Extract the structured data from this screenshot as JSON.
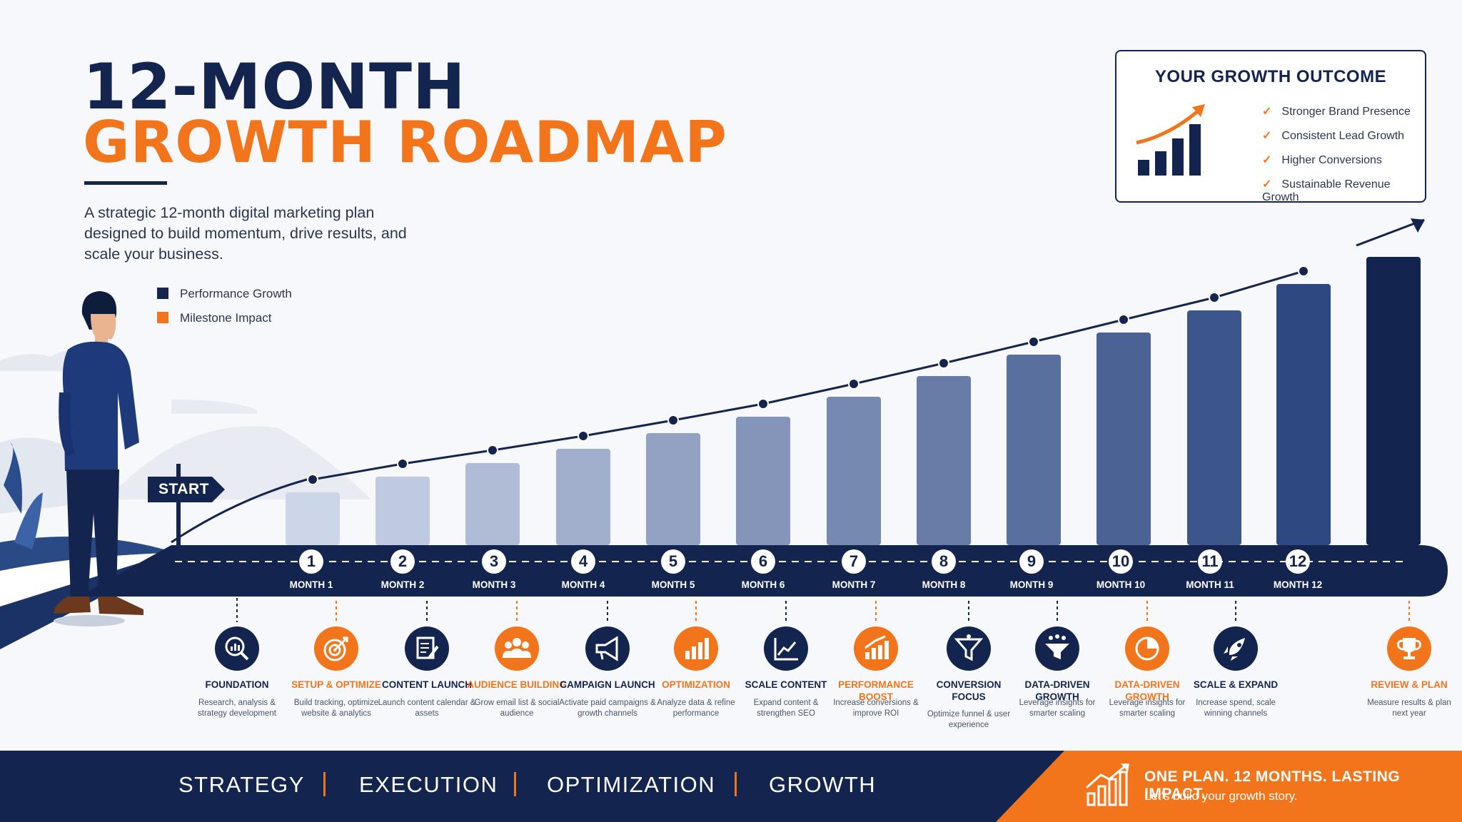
{
  "header": {
    "title_line1": "12-MONTH",
    "title_line2": "GROWTH ROADMAP",
    "subtitle": "A strategic 12-month digital marketing plan designed to build momentum, drive results, and scale your business."
  },
  "legend": [
    {
      "label": "Performance Growth",
      "color": "#13254f"
    },
    {
      "label": "Milestone Impact",
      "color": "#f2751b"
    }
  ],
  "outcome": {
    "title": "YOUR GROWTH OUTCOME",
    "items": [
      "Stronger Brand Presence",
      "Consistent Lead Growth",
      "Higher Conversions",
      "Sustainable Revenue Growth"
    ]
  },
  "start_label": "START",
  "months": [
    {
      "num": "1",
      "label": "MONTH 1",
      "title": "FOUNDATION",
      "desc": "Research, analysis & strategy development",
      "icon": "magnifier-chart-icon",
      "accent": "navy"
    },
    {
      "num": "2",
      "label": "MONTH 2",
      "title": "SETUP & OPTIMIZE",
      "desc": "Build tracking, optimize website & analytics",
      "icon": "target-icon",
      "accent": "orange"
    },
    {
      "num": "3",
      "label": "MONTH 3",
      "title": "CONTENT LAUNCH",
      "desc": "Launch content calendar & assets",
      "icon": "document-pen-icon",
      "accent": "navy"
    },
    {
      "num": "4",
      "label": "MONTH 4",
      "title": "AUDIENCE BUILDING",
      "desc": "Grow email list & social audience",
      "icon": "people-icon",
      "accent": "orange"
    },
    {
      "num": "5",
      "label": "MONTH 5",
      "title": "CAMPAIGN LAUNCH",
      "desc": "Activate paid campaigns & growth channels",
      "icon": "megaphone-icon",
      "accent": "navy"
    },
    {
      "num": "6",
      "label": "MONTH 6",
      "title": "OPTIMIZATION",
      "desc": "Analyze data & refine performance",
      "icon": "bar-chart-icon",
      "accent": "orange"
    },
    {
      "num": "7",
      "label": "MONTH 7",
      "title": "SCALE CONTENT",
      "desc": "Expand content & strengthen SEO",
      "icon": "line-chart-icon",
      "accent": "navy"
    },
    {
      "num": "8",
      "label": "MONTH 8",
      "title": "PERFORMANCE BOOST",
      "desc": "Increase conversions & improve ROI",
      "icon": "growth-chart-icon",
      "accent": "orange"
    },
    {
      "num": "9",
      "label": "MONTH 9",
      "title": "CONVERSION FOCUS",
      "desc": "Optimize funnel & user experience",
      "icon": "funnel-icon",
      "accent": "navy"
    },
    {
      "num": "10",
      "label": "MONTH 10",
      "title": "DATA-DRIVEN GROWTH",
      "desc": "Leverage insights for smarter scaling",
      "icon": "funnel-people-icon",
      "accent": "navy"
    },
    {
      "num": "11",
      "label": "MONTH 11",
      "title": "DATA-DRIVEN GROWTH",
      "desc": "Leverage insights for smarter scaling",
      "icon": "pie-chart-icon",
      "accent": "orange"
    },
    {
      "num": "12",
      "label": "MONTH 12",
      "title": "SCALE & EXPAND",
      "desc": "Increase spend, scale winning channels",
      "icon": "rocket-icon",
      "accent": "navy"
    }
  ],
  "review": {
    "title": "REVIEW & PLAN",
    "desc": "Measure results & plan next year",
    "icon": "trophy-icon",
    "accent": "orange"
  },
  "footer": {
    "words": [
      "STRATEGY",
      "EXECUTION",
      "OPTIMIZATION",
      "GROWTH"
    ],
    "tagline": "ONE PLAN. 12 MONTHS. LASTING IMPACT.",
    "tagline_sub": "Let's build your growth story."
  },
  "colors": {
    "navy": "#13254f",
    "orange": "#f2751b",
    "bar_light": "#cdd6e8",
    "bar_dark": "#1f3b78"
  }
}
